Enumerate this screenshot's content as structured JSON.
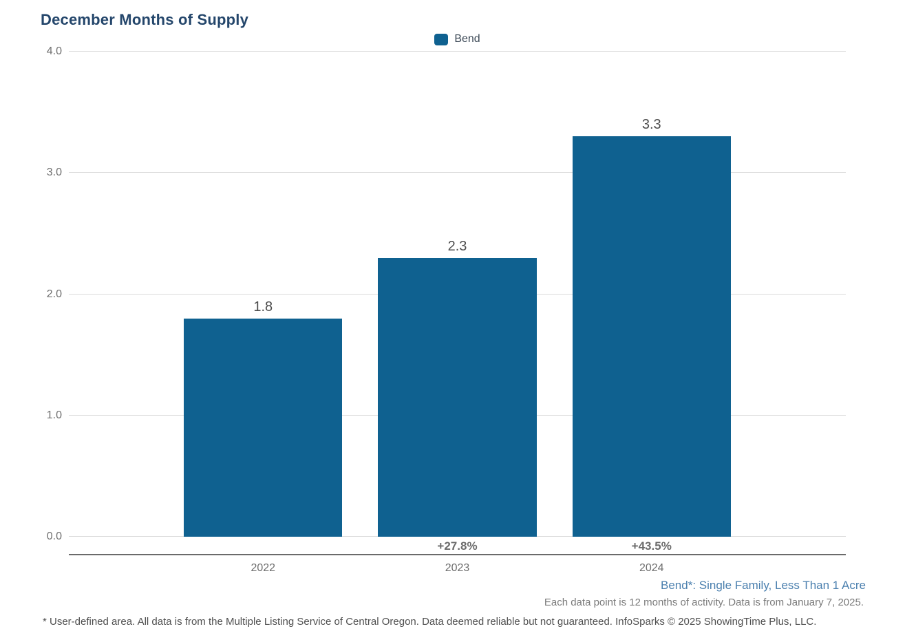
{
  "chart_data": {
    "type": "bar",
    "title": "December Months of Supply",
    "categories": [
      "2022",
      "2023",
      "2024"
    ],
    "series": [
      {
        "name": "Bend",
        "color": "#0f6190",
        "values": [
          1.8,
          2.3,
          3.3
        ]
      }
    ],
    "value_labels": [
      "1.8",
      "2.3",
      "3.3"
    ],
    "change_labels": [
      "",
      "+27.8%",
      "+43.5%"
    ],
    "xlabel": "",
    "ylabel": "",
    "ylim": [
      0,
      4
    ],
    "yticks": [
      "0.0",
      "1.0",
      "2.0",
      "3.0",
      "4.0"
    ],
    "grid": true,
    "legend_position": "top-center"
  },
  "legend": {
    "label": "Bend",
    "swatch_color": "#0f6190"
  },
  "footnotes": {
    "series_note": "Bend*: Single Family, Less Than 1 Acre",
    "data_note": "Each data point is 12 months of activity. Data is from January 7, 2025.",
    "disclaimer": "* User-defined area. All data is from the Multiple Listing Service of Central Oregon. Data deemed reliable but not guaranteed. InfoSparks © 2025 ShowingTime Plus, LLC."
  },
  "colors": {
    "bar": "#0f6190",
    "title": "#24466b",
    "grid": "#d9d9d9",
    "axis": "#6b6b6b",
    "tick_label": "#6e6e6e",
    "value_label": "#4d4d4d",
    "change_label": "#6b6b6b",
    "series_note": "#4a7fae",
    "data_note": "#7a7a7a",
    "disclaimer": "#4f4f4f"
  }
}
